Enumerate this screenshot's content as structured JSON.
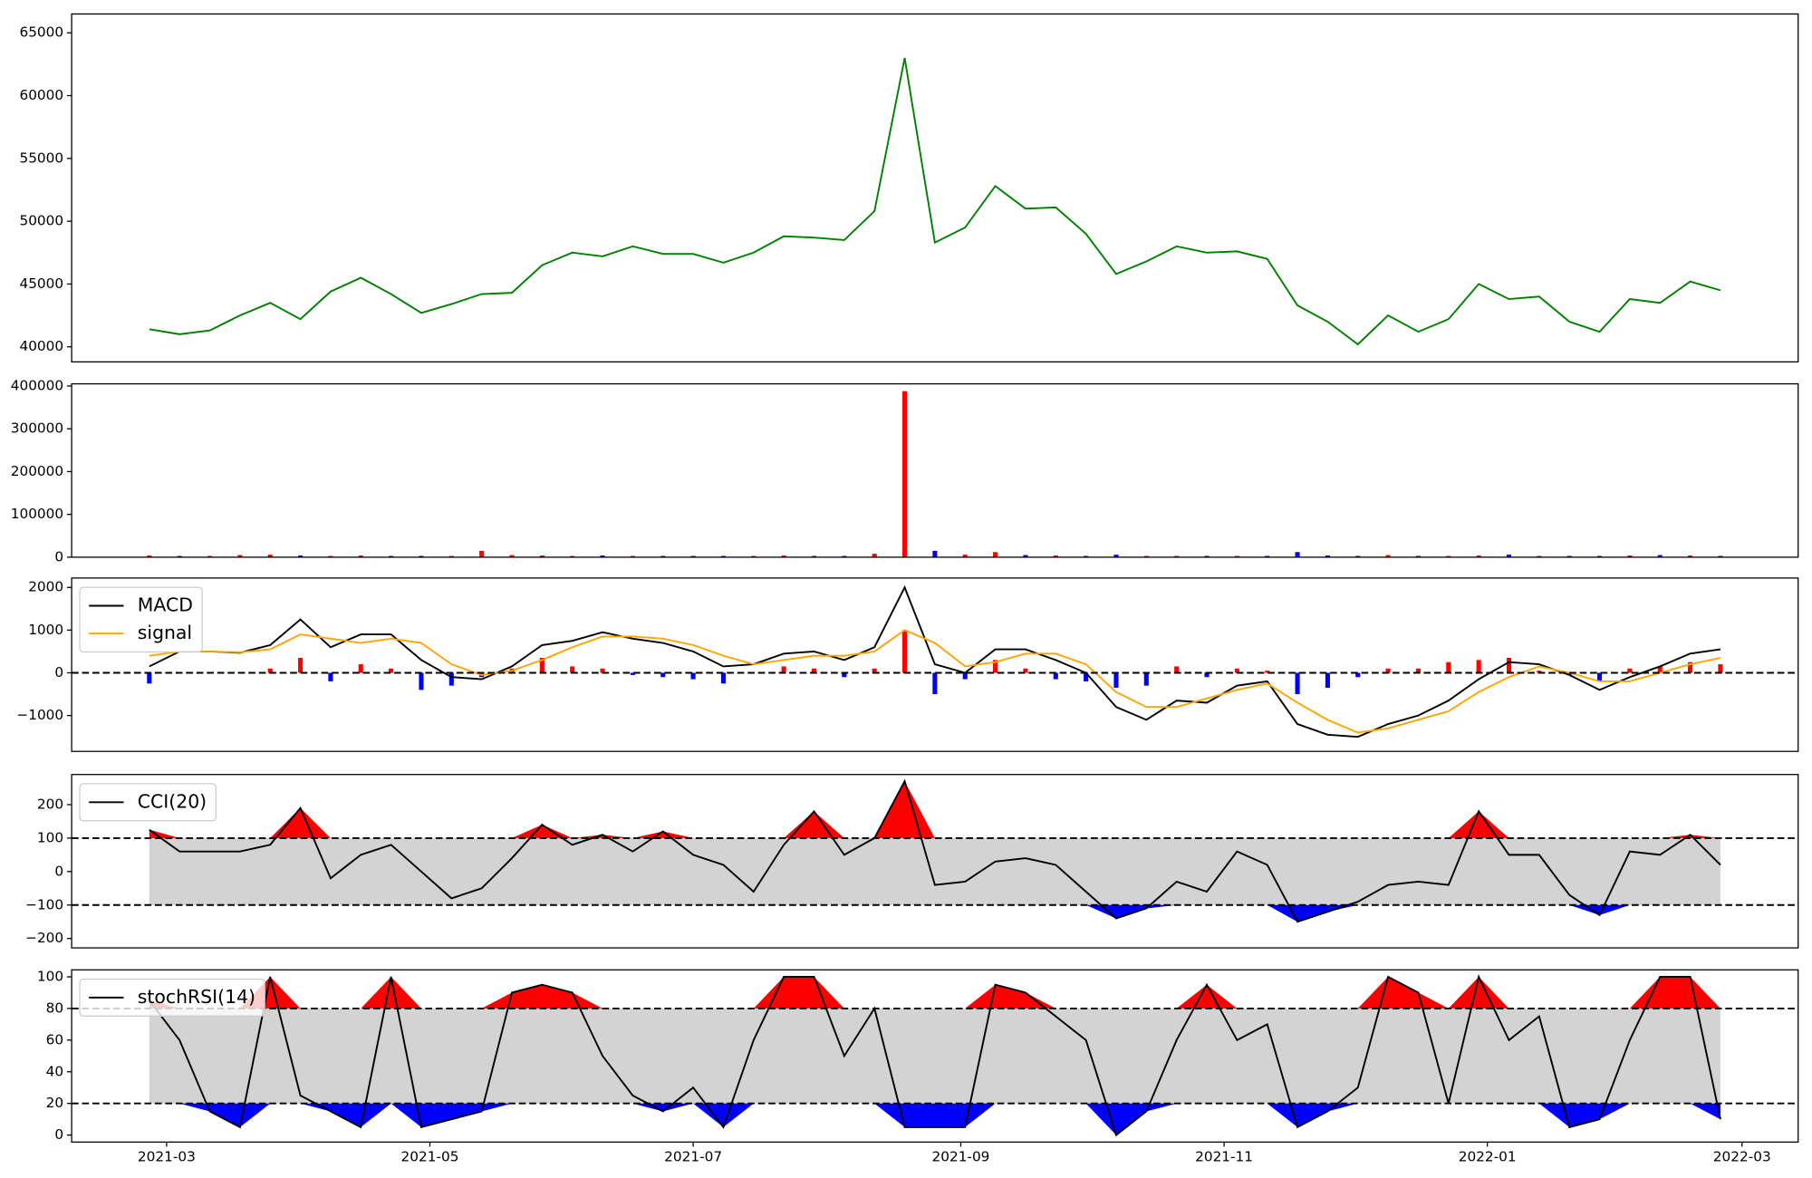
{
  "chart_data": [
    {
      "type": "line",
      "color": "green",
      "x": [
        18683,
        18690,
        18697,
        18704,
        18711,
        18718,
        18725,
        18732,
        18739,
        18746,
        18753,
        18760,
        18767,
        18774,
        18781,
        18788,
        18795,
        18802,
        18809,
        18816,
        18823,
        18830,
        18837,
        18844,
        18851,
        18858,
        18865,
        18872,
        18879,
        18886,
        18893,
        18900,
        18907,
        18914,
        18921,
        18928,
        18935,
        18942,
        18949,
        18956,
        18963,
        18970,
        18977,
        18984,
        18991,
        18998,
        19005,
        19012,
        19019,
        19026,
        19033,
        19040,
        19047
      ],
      "xlim": [
        18665,
        19065
      ],
      "values": [
        41400,
        41000,
        41300,
        42500,
        43500,
        42200,
        44400,
        45500,
        44200,
        42700,
        43400,
        44200,
        44300,
        46500,
        47500,
        47200,
        48000,
        47400,
        47400,
        46700,
        47500,
        48800,
        48700,
        48500,
        50800,
        63000,
        48300,
        49500,
        52800,
        51000,
        51100,
        49000,
        45800,
        46800,
        48000,
        47500,
        47600,
        47000,
        43300,
        42000,
        40200,
        42500,
        41200,
        42200,
        45000,
        43800,
        44000,
        42000,
        41200,
        43800,
        43500,
        45200,
        44500
      ],
      "ylim": [
        38800,
        66500
      ],
      "yticks": [
        40000,
        45000,
        50000,
        55000,
        60000,
        65000
      ]
    },
    {
      "type": "bar",
      "values": [
        4000,
        3000,
        3000,
        5000,
        6000,
        4000,
        3000,
        4000,
        3000,
        3000,
        3000,
        15000,
        5000,
        4000,
        3000,
        4000,
        3000,
        3000,
        3000,
        3000,
        3000,
        4000,
        3000,
        3000,
        8000,
        388000,
        15000,
        6000,
        12000,
        5000,
        4000,
        3000,
        6000,
        3000,
        3000,
        3000,
        3000,
        3000,
        12000,
        4000,
        3000,
        5000,
        3000,
        3000,
        4000,
        6000,
        3000,
        3000,
        3000,
        4000,
        5000,
        4000,
        3000
      ],
      "colors": [
        "red",
        "blue",
        "red",
        "red",
        "red",
        "blue",
        "red",
        "red",
        "blue",
        "blue",
        "red",
        "red",
        "red",
        "red",
        "red",
        "blue",
        "red",
        "blue",
        "blue",
        "blue",
        "red",
        "red",
        "blue",
        "blue",
        "red",
        "red",
        "blue",
        "red",
        "red",
        "blue",
        "red",
        "blue",
        "blue",
        "red",
        "red",
        "blue",
        "red",
        "blue",
        "blue",
        "blue",
        "blue",
        "red",
        "blue",
        "red",
        "red",
        "blue",
        "red",
        "blue",
        "blue",
        "red",
        "blue",
        "red",
        "blue"
      ],
      "ylim": [
        0,
        405000
      ],
      "yticks": [
        0,
        100000,
        200000,
        300000,
        400000
      ]
    },
    {
      "type": "line",
      "legend": "upper left",
      "series": [
        {
          "name": "MACD",
          "color": "black",
          "values": [
            150,
            500,
            500,
            470,
            650,
            1250,
            600,
            900,
            900,
            300,
            -100,
            -150,
            150,
            650,
            750,
            950,
            800,
            700,
            500,
            150,
            200,
            450,
            500,
            300,
            600,
            2000,
            200,
            0,
            550,
            550,
            300,
            0,
            -800,
            -1100,
            -650,
            -700,
            -300,
            -200,
            -1200,
            -1450,
            -1500,
            -1200,
            -1000,
            -650,
            -150,
            250,
            200,
            -50,
            -400,
            -100,
            150,
            450,
            550
          ]
        },
        {
          "name": "signal",
          "color": "orange",
          "values": [
            400,
            500,
            500,
            480,
            550,
            900,
            800,
            700,
            800,
            700,
            200,
            -50,
            50,
            300,
            600,
            850,
            850,
            800,
            650,
            400,
            200,
            300,
            400,
            400,
            500,
            1000,
            700,
            150,
            250,
            450,
            450,
            200,
            -450,
            -800,
            -800,
            -600,
            -400,
            -250,
            -700,
            -1100,
            -1400,
            -1300,
            -1100,
            -900,
            -450,
            -100,
            150,
            0,
            -200,
            -200,
            0,
            200,
            350
          ]
        },
        {
          "type": "bar",
          "colors": {
            "positive": "red",
            "negative": "blue"
          },
          "values": [
            -250,
            0,
            0,
            -10,
            100,
            350,
            -200,
            200,
            100,
            -400,
            -300,
            -100,
            100,
            350,
            150,
            100,
            -50,
            -100,
            -150,
            -250,
            0,
            150,
            100,
            -100,
            100,
            1000,
            -500,
            -150,
            300,
            100,
            -150,
            -200,
            -350,
            -300,
            150,
            -100,
            100,
            50,
            -500,
            -350,
            -100,
            100,
            100,
            250,
            300,
            350,
            50,
            -50,
            -200,
            100,
            150,
            250,
            200
          ]
        }
      ],
      "hlines": [
        0
      ],
      "ylim": [
        -1840,
        2220
      ],
      "yticks": [
        {
          "value": -1000,
          "label": "−1000"
        },
        0,
        1000,
        2000
      ]
    },
    {
      "type": "line",
      "legend": "upper left",
      "series": [
        {
          "name": "CCI(20)",
          "color": "black",
          "values": [
            125,
            60,
            60,
            60,
            80,
            190,
            -20,
            50,
            80,
            0,
            -80,
            -50,
            40,
            140,
            80,
            110,
            60,
            120,
            50,
            20,
            -60,
            80,
            180,
            50,
            100,
            270,
            -40,
            -30,
            30,
            40,
            20,
            -60,
            -140,
            -110,
            -30,
            -60,
            60,
            20,
            -150,
            -120,
            -90,
            -40,
            -30,
            -40,
            180,
            50,
            50,
            -70,
            -130,
            60,
            50,
            110,
            20
          ]
        }
      ],
      "hlines": [
        -100,
        100
      ],
      "fill": {
        "above": "red",
        "below": "blue",
        "between": "lightgray"
      },
      "ylim": [
        -228,
        290
      ],
      "yticks": [
        {
          "value": -200,
          "label": "−200"
        },
        {
          "value": -100,
          "label": "−100"
        },
        0,
        100,
        200
      ]
    },
    {
      "type": "line",
      "legend": "upper left",
      "series": [
        {
          "name": "stochRSI(14)",
          "color": "black",
          "values": [
            85,
            60,
            15,
            5,
            100,
            25,
            15,
            5,
            100,
            5,
            10,
            15,
            90,
            95,
            90,
            50,
            25,
            15,
            30,
            5,
            60,
            100,
            100,
            50,
            80,
            5,
            5,
            5,
            95,
            90,
            75,
            60,
            0,
            15,
            60,
            95,
            60,
            70,
            5,
            15,
            30,
            100,
            90,
            20,
            100,
            60,
            75,
            5,
            10,
            60,
            100,
            100,
            10
          ]
        }
      ],
      "hlines": [
        20,
        80
      ],
      "fill": {
        "above": "red",
        "below": "blue",
        "between": "lightgray"
      },
      "ylim": [
        -4.4,
        104.4
      ],
      "yticks": [
        0,
        20,
        40,
        60,
        80,
        100
      ],
      "xticks": [
        {
          "value": 18687,
          "label": "2021-03"
        },
        {
          "value": 18748,
          "label": "2021-05"
        },
        {
          "value": 18809,
          "label": "2021-07"
        },
        {
          "value": 18871,
          "label": "2021-09"
        },
        {
          "value": 18932,
          "label": "2021-11"
        },
        {
          "value": 18993,
          "label": "2022-01"
        },
        {
          "value": 19052,
          "label": "2022-03"
        }
      ]
    }
  ]
}
